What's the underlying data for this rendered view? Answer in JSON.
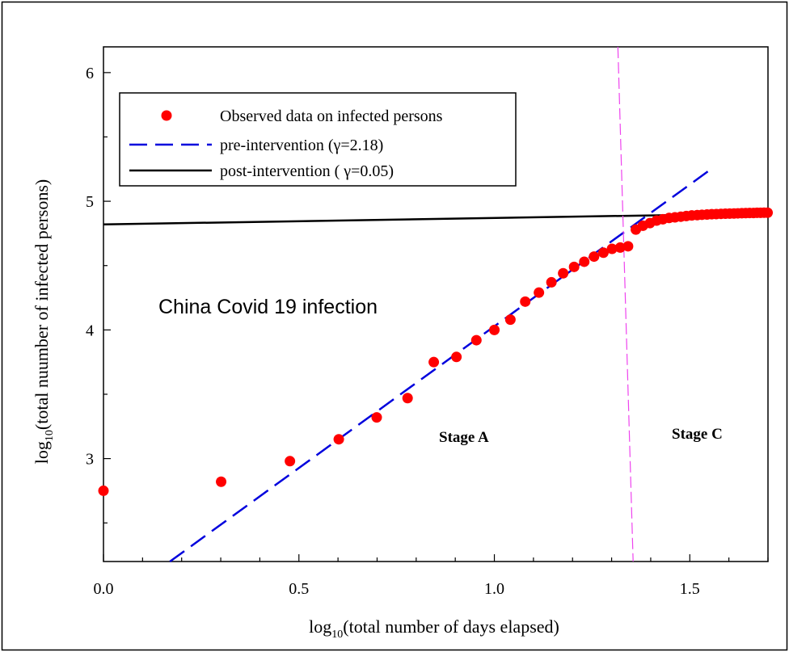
{
  "chart_data": {
    "type": "scatter",
    "title": "",
    "annotation": "China Covid 19 infection",
    "stage_labels": [
      "Stage A",
      "Stage C"
    ],
    "xlabel": {
      "prefix": "log",
      "sub": "10",
      "suffix": "(total number of days elapsed)"
    },
    "ylabel": {
      "prefix": "log",
      "sub": "10",
      "suffix": "(total nuumber of infected persons)"
    },
    "xlim": [
      0.0,
      1.7
    ],
    "ylim": [
      2.2,
      6.2
    ],
    "xticks": [
      {
        "value": 0.0,
        "label": "0.0"
      },
      {
        "value": 0.5,
        "label": "0.5"
      },
      {
        "value": 1.0,
        "label": "1.0"
      },
      {
        "value": 1.5,
        "label": "1.5"
      }
    ],
    "yticks": [
      {
        "value": 3,
        "label": "3"
      },
      {
        "value": 4,
        "label": "4"
      },
      {
        "value": 5,
        "label": "5"
      },
      {
        "value": 6,
        "label": "6"
      }
    ],
    "legend": [
      {
        "label": "Observed data on infected persons",
        "marker": "dot",
        "color": "#ff0000"
      },
      {
        "label": "pre-intervention (γ=2.18)",
        "marker": "dash",
        "color": "#0000dd"
      },
      {
        "label": "post-intervention ( γ=0.05)",
        "marker": "solid",
        "color": "#000000"
      }
    ],
    "legend_position": "top-left",
    "series": [
      {
        "name": "Observed data on infected persons",
        "kind": "points",
        "color": "#ff0000",
        "x": [
          0.0,
          0.301,
          0.477,
          0.602,
          0.699,
          0.778,
          0.845,
          0.903,
          0.954,
          1.0,
          1.041,
          1.079,
          1.114,
          1.146,
          1.176,
          1.204,
          1.23,
          1.255,
          1.279,
          1.301,
          1.322,
          1.342,
          1.362,
          1.38,
          1.398,
          1.415,
          1.431,
          1.447,
          1.462,
          1.477,
          1.491,
          1.505,
          1.519,
          1.531,
          1.544,
          1.556,
          1.568,
          1.58,
          1.591,
          1.602,
          1.613,
          1.623,
          1.633,
          1.643,
          1.653,
          1.663,
          1.672,
          1.681,
          1.69,
          1.699
        ],
        "y": [
          2.75,
          2.82,
          2.98,
          3.15,
          3.32,
          3.47,
          3.75,
          3.79,
          3.92,
          4.0,
          4.08,
          4.22,
          4.29,
          4.37,
          4.44,
          4.49,
          4.53,
          4.57,
          4.6,
          4.63,
          4.64,
          4.65,
          4.78,
          4.81,
          4.83,
          4.85,
          4.86,
          4.87,
          4.875,
          4.88,
          4.885,
          4.89,
          4.892,
          4.895,
          4.897,
          4.899,
          4.9,
          4.902,
          4.903,
          4.904,
          4.905,
          4.906,
          4.907,
          4.908,
          4.909,
          4.909,
          4.91,
          4.91,
          4.911,
          4.911
        ]
      },
      {
        "name": "pre-intervention (γ=2.18)",
        "kind": "line",
        "style": "dashed",
        "color": "#0000dd",
        "x": [
          0.17,
          1.55
        ],
        "y": [
          2.2,
          5.24
        ]
      },
      {
        "name": "post-intervention ( γ=0.05)",
        "kind": "line",
        "style": "solid",
        "color": "#000000",
        "x": [
          0.0,
          1.7
        ],
        "y": [
          4.82,
          4.905
        ]
      },
      {
        "name": "",
        "kind": "line",
        "style": "dashed",
        "color": "#ee44ee",
        "x": [
          1.316,
          1.355
        ],
        "y": [
          6.2,
          2.2
        ]
      }
    ]
  }
}
